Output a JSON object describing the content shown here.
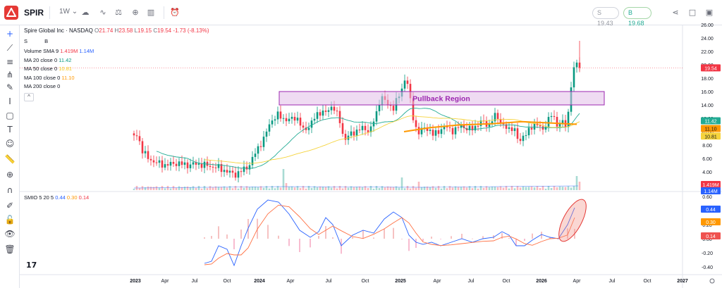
{
  "topbar": {
    "symbol": "SPIR",
    "interval": "1W",
    "sell_price": "S 19.43",
    "buy_price": "B 19.68"
  },
  "legend": {
    "title": "Spire Global Inc · NASDAQ",
    "ohlc": {
      "open_label": "O",
      "open": "21.74",
      "high_label": "H",
      "high": "23.58",
      "low_label": "L",
      "low": "19.15",
      "close_label": "C",
      "close": "19.54",
      "change": "-1.73 (-8.13%)"
    },
    "sell_label": "S",
    "buy_label": "B",
    "volume": {
      "label": "Volume SMA 9",
      "v1": "1.419M",
      "v2": "1.14M"
    },
    "ma20": {
      "label": "MA 20 close 0",
      "value": "11.42"
    },
    "ma50": {
      "label": "MA 50 close 0",
      "value": "10.81"
    },
    "ma100": {
      "label": "MA 100 close 0",
      "value": "11.10"
    },
    "ma200": {
      "label": "MA 200 close 0"
    },
    "collapse": "^"
  },
  "smio_legend": {
    "label": "SMIO 5 20 5",
    "v1": "0.44",
    "v2": "0.30",
    "v3": "0.14"
  },
  "annotation": {
    "text": "Pullback Region"
  },
  "price_labels": {
    "last": "19.54",
    "ma20": "11.42",
    "ma100": "11.10",
    "ma50": "10.81",
    "vol1": "1.419M",
    "vol2": "1.14M"
  },
  "smio_labels": {
    "v1": "0.44",
    "v2": "0.30",
    "v3": "0.14"
  },
  "price_axis": [
    "26.00",
    "24.00",
    "22.00",
    "20.00",
    "18.00",
    "16.00",
    "14.00",
    "12.00",
    "10.00",
    "8.00",
    "6.00",
    "4.00",
    "2.00"
  ],
  "smio_axis": [
    "0.60",
    "0.40",
    "0.20",
    "0.00",
    "-0.20",
    "-0.40"
  ],
  "time_axis": [
    "2023",
    "Apr",
    "Jul",
    "Oct",
    "2024",
    "Apr",
    "Jul",
    "Oct",
    "2025",
    "Apr",
    "Jul",
    "Oct",
    "2026",
    "Apr",
    "Jul",
    "Oct",
    "2027"
  ],
  "colors": {
    "up": "#089981",
    "down": "#f23645",
    "ma20": "#22ab94",
    "ma50": "#f5d33c",
    "ma100": "#ff9800",
    "smio_fast": "#2962ff",
    "smio_slow": "#ff7043",
    "region_fill": "#e1bee7",
    "region_border": "#9c27b0"
  },
  "icons": {
    "crosshair": "crosshair-icon",
    "trendline": "trendline-icon",
    "fib": "fib-icon",
    "brush": "brush-icon",
    "text": "text-icon",
    "emoji": "emoji-icon",
    "ruler": "ruler-icon",
    "zoom": "zoom-icon",
    "magnet": "magnet-icon",
    "lock": "lock-icon",
    "eye": "eye-icon",
    "trash": "trash-icon"
  },
  "tv_logo": "17"
}
